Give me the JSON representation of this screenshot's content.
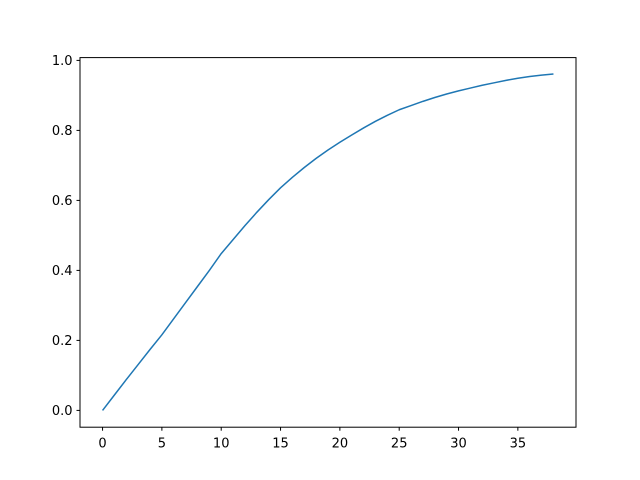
{
  "figure": {
    "background": "#ffffff"
  },
  "chart_data": {
    "type": "line",
    "title": "",
    "xlabel": "",
    "ylabel": "",
    "grid": false,
    "legend_position": "none",
    "x": [
      0,
      1,
      2,
      3,
      4,
      5,
      6,
      7,
      8,
      9,
      10,
      11,
      12,
      13,
      14,
      15,
      16,
      17,
      18,
      19,
      20,
      21,
      22,
      23,
      24,
      25,
      26,
      27,
      28,
      29,
      30,
      31,
      32,
      33,
      34,
      35,
      36,
      37,
      38
    ],
    "y": [
      0.0,
      0.044,
      0.088,
      0.131,
      0.174,
      0.216,
      0.262,
      0.308,
      0.354,
      0.4,
      0.448,
      0.488,
      0.528,
      0.566,
      0.602,
      0.636,
      0.666,
      0.694,
      0.72,
      0.744,
      0.766,
      0.787,
      0.807,
      0.826,
      0.843,
      0.859,
      0.871,
      0.883,
      0.894,
      0.904,
      0.913,
      0.921,
      0.929,
      0.936,
      0.943,
      0.949,
      0.954,
      0.958,
      0.961
    ],
    "series": [
      {
        "name": "series-0",
        "color": "#1f77b4"
      }
    ],
    "line_color": "#1f77b4",
    "line_width": 1.5,
    "xlim": [
      -1.9,
      39.9
    ],
    "ylim": [
      -0.048,
      1.008
    ],
    "xtick_values": [
      0,
      5,
      10,
      15,
      20,
      25,
      30,
      35
    ],
    "xtick_labels": [
      "0",
      "5",
      "10",
      "15",
      "20",
      "25",
      "30",
      "35"
    ],
    "ytick_values": [
      0.0,
      0.2,
      0.4,
      0.6,
      0.8,
      1.0
    ],
    "ytick_labels": [
      "0.0",
      "0.2",
      "0.4",
      "0.6",
      "0.8",
      "1.0"
    ],
    "spine_color": "#000000",
    "tick_color": "#000000",
    "plot_background": "#ffffff"
  }
}
